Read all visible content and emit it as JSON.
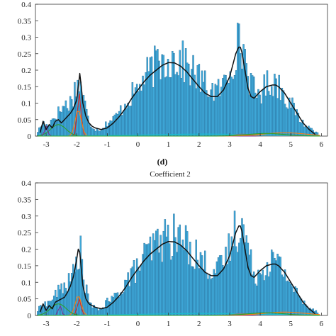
{
  "colors": {
    "bar_fill": "#3fa9d9",
    "bar_stroke": "#1f5f8b",
    "fit_line": "#111111",
    "component_red": "#d62728",
    "component_orange": "#ff7f0e",
    "component_green": "#2ca02c",
    "component_purple": "#7e2f8e",
    "component_cyan": "#17becf",
    "component_grey": "#808080"
  },
  "chart_data": [
    {
      "type": "bar",
      "panel_label": "",
      "title": "",
      "xlabel": "",
      "ylabel": "",
      "xlim": [
        -3.35,
        6.2
      ],
      "ylim": [
        0,
        0.4
      ],
      "xticks": [
        -3,
        -2,
        -1,
        0,
        1,
        2,
        3,
        4,
        5,
        6
      ],
      "yticks": [
        0,
        0.05,
        0.1,
        0.15,
        0.2,
        0.25,
        0.3,
        0.35,
        0.4
      ],
      "grid": false,
      "legend": "none",
      "histogram_envelope": {
        "x": [
          -3.3,
          -3.1,
          -3.0,
          -2.8,
          -2.6,
          -2.4,
          -2.2,
          -2.05,
          -1.9,
          -1.75,
          -1.6,
          -1.4,
          -1.2,
          -1.0,
          -0.8,
          -0.6,
          -0.4,
          -0.2,
          0.0,
          0.2,
          0.4,
          0.6,
          0.8,
          1.0,
          1.2,
          1.4,
          1.6,
          1.8,
          2.0,
          2.2,
          2.4,
          2.6,
          2.8,
          3.0,
          3.2,
          3.35,
          3.5,
          3.7,
          3.9,
          4.1,
          4.3,
          4.5,
          4.7,
          4.9,
          5.1,
          5.3,
          5.5,
          5.7,
          5.9
        ],
        "y": [
          0.01,
          0.04,
          0.03,
          0.05,
          0.07,
          0.09,
          0.1,
          0.14,
          0.16,
          0.1,
          0.04,
          0.02,
          0.02,
          0.04,
          0.05,
          0.07,
          0.1,
          0.12,
          0.14,
          0.17,
          0.19,
          0.21,
          0.22,
          0.23,
          0.23,
          0.22,
          0.21,
          0.19,
          0.17,
          0.15,
          0.14,
          0.13,
          0.15,
          0.2,
          0.26,
          0.27,
          0.24,
          0.15,
          0.12,
          0.14,
          0.16,
          0.16,
          0.14,
          0.11,
          0.08,
          0.05,
          0.03,
          0.02,
          0.01
        ]
      },
      "fit_curve": {
        "x": [
          -3.2,
          -3.1,
          -3.0,
          -2.9,
          -2.8,
          -2.7,
          -2.6,
          -2.5,
          -2.4,
          -2.3,
          -2.2,
          -2.1,
          -2.0,
          -1.95,
          -1.9,
          -1.85,
          -1.8,
          -1.7,
          -1.6,
          -1.5,
          -1.4,
          -1.2,
          -1.0,
          -0.8,
          -0.6,
          -0.4,
          -0.2,
          0.0,
          0.2,
          0.4,
          0.6,
          0.8,
          1.0,
          1.2,
          1.4,
          1.6,
          1.8,
          2.0,
          2.2,
          2.4,
          2.6,
          2.8,
          3.0,
          3.1,
          3.2,
          3.3,
          3.35,
          3.4,
          3.5,
          3.6,
          3.7,
          3.8,
          3.9,
          4.0,
          4.2,
          4.4,
          4.5,
          4.6,
          4.8,
          5.0,
          5.2,
          5.4,
          5.6,
          5.8
        ],
        "y": [
          0.01,
          0.045,
          0.02,
          0.035,
          0.025,
          0.045,
          0.05,
          0.04,
          0.05,
          0.06,
          0.07,
          0.085,
          0.11,
          0.15,
          0.19,
          0.15,
          0.1,
          0.06,
          0.04,
          0.03,
          0.025,
          0.02,
          0.025,
          0.04,
          0.06,
          0.085,
          0.115,
          0.14,
          0.165,
          0.185,
          0.2,
          0.215,
          0.223,
          0.222,
          0.212,
          0.195,
          0.172,
          0.15,
          0.13,
          0.12,
          0.12,
          0.14,
          0.18,
          0.215,
          0.25,
          0.27,
          0.27,
          0.255,
          0.2,
          0.145,
          0.12,
          0.115,
          0.125,
          0.135,
          0.15,
          0.155,
          0.155,
          0.15,
          0.13,
          0.1,
          0.07,
          0.04,
          0.02,
          0.005
        ]
      }
    },
    {
      "type": "bar",
      "panel_label": "(d)",
      "title": "Coefficient 2",
      "xlabel": "",
      "ylabel": "",
      "xlim": [
        -3.35,
        6.2
      ],
      "ylim": [
        0,
        0.4
      ],
      "xticks": [
        -3,
        -2,
        -1,
        0,
        1,
        2,
        3,
        4,
        5,
        6
      ],
      "yticks": [
        0,
        0.05,
        0.1,
        0.15,
        0.2,
        0.25,
        0.3,
        0.35,
        0.4
      ],
      "grid": false,
      "legend": "none",
      "histogram_envelope": {
        "x": [
          -3.3,
          -3.1,
          -3.0,
          -2.8,
          -2.6,
          -2.4,
          -2.2,
          -2.05,
          -1.9,
          -1.75,
          -1.6,
          -1.4,
          -1.2,
          -1.0,
          -0.8,
          -0.6,
          -0.4,
          -0.2,
          0.0,
          0.2,
          0.4,
          0.6,
          0.8,
          1.0,
          1.2,
          1.4,
          1.6,
          1.8,
          2.0,
          2.2,
          2.4,
          2.6,
          2.8,
          3.0,
          3.2,
          3.35,
          3.5,
          3.7,
          3.9,
          4.1,
          4.3,
          4.5,
          4.7,
          4.9,
          5.1,
          5.3,
          5.5,
          5.7,
          5.9
        ],
        "y": [
          0.01,
          0.04,
          0.03,
          0.05,
          0.07,
          0.09,
          0.1,
          0.14,
          0.2,
          0.1,
          0.04,
          0.02,
          0.02,
          0.04,
          0.05,
          0.07,
          0.1,
          0.12,
          0.14,
          0.17,
          0.19,
          0.21,
          0.22,
          0.23,
          0.23,
          0.22,
          0.21,
          0.19,
          0.17,
          0.15,
          0.14,
          0.13,
          0.15,
          0.2,
          0.26,
          0.27,
          0.24,
          0.15,
          0.12,
          0.14,
          0.16,
          0.16,
          0.14,
          0.11,
          0.08,
          0.05,
          0.03,
          0.02,
          0.01
        ]
      },
      "fit_curve": {
        "x": [
          -3.2,
          -3.1,
          -3.0,
          -2.9,
          -2.8,
          -2.7,
          -2.6,
          -2.5,
          -2.4,
          -2.3,
          -2.2,
          -2.1,
          -2.0,
          -1.95,
          -1.9,
          -1.85,
          -1.8,
          -1.7,
          -1.6,
          -1.5,
          -1.4,
          -1.2,
          -1.0,
          -0.8,
          -0.6,
          -0.4,
          -0.2,
          0.0,
          0.2,
          0.4,
          0.6,
          0.8,
          1.0,
          1.2,
          1.4,
          1.6,
          1.8,
          2.0,
          2.2,
          2.4,
          2.6,
          2.8,
          3.0,
          3.1,
          3.2,
          3.3,
          3.35,
          3.4,
          3.5,
          3.6,
          3.7,
          3.8,
          3.9,
          4.0,
          4.2,
          4.4,
          4.5,
          4.6,
          4.8,
          5.0,
          5.2,
          5.4,
          5.6,
          5.8
        ],
        "y": [
          0.01,
          0.035,
          0.015,
          0.03,
          0.02,
          0.04,
          0.045,
          0.05,
          0.055,
          0.07,
          0.09,
          0.12,
          0.17,
          0.2,
          0.19,
          0.14,
          0.09,
          0.05,
          0.035,
          0.03,
          0.025,
          0.02,
          0.025,
          0.04,
          0.06,
          0.085,
          0.115,
          0.14,
          0.165,
          0.185,
          0.2,
          0.215,
          0.223,
          0.222,
          0.212,
          0.195,
          0.172,
          0.15,
          0.13,
          0.12,
          0.12,
          0.14,
          0.18,
          0.215,
          0.25,
          0.27,
          0.27,
          0.255,
          0.2,
          0.145,
          0.12,
          0.115,
          0.125,
          0.135,
          0.15,
          0.155,
          0.155,
          0.15,
          0.13,
          0.1,
          0.07,
          0.04,
          0.02,
          0.005
        ]
      }
    }
  ]
}
